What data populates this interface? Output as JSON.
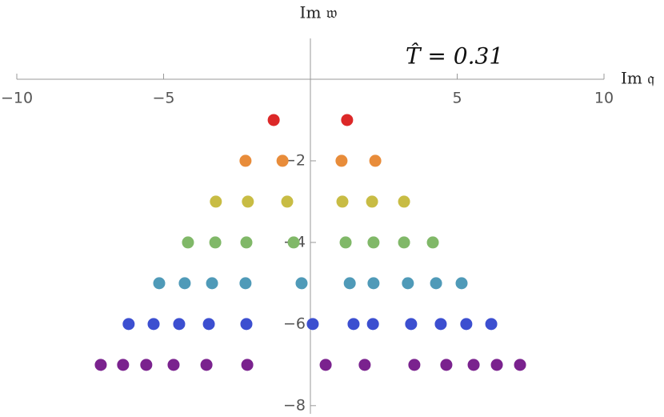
{
  "chart_data": {
    "type": "scatter",
    "x_label": "Im 𝔮",
    "y_label": "Im 𝔴",
    "annotation": "T̂ = 0.31",
    "xlim": [
      -10,
      10
    ],
    "ylim": [
      -8.2,
      1
    ],
    "xticks": [
      {
        "value": -10,
        "label": "−10"
      },
      {
        "value": -5,
        "label": "−5"
      },
      5,
      10
    ],
    "yticks": [
      {
        "value": -2,
        "label": "−2"
      },
      {
        "value": -4,
        "label": "−4"
      },
      {
        "value": -6,
        "label": "−6"
      },
      {
        "value": -8,
        "label": "−8"
      }
    ],
    "series": [
      {
        "color": "#dc2828",
        "x": [
          -1.25,
          1.25
        ],
        "y": [
          -1,
          -1
        ]
      },
      {
        "color": "#e88c3a",
        "x": [
          -2.21,
          -0.95,
          1.06,
          2.21
        ],
        "y": [
          -2,
          -2,
          -2,
          -2
        ]
      },
      {
        "color": "#c8bc44",
        "x": [
          -3.22,
          -2.13,
          -0.79,
          1.09,
          2.1,
          3.19
        ],
        "y": [
          -3,
          -3,
          -3,
          -3,
          -3,
          -3
        ]
      },
      {
        "color": "#80b868",
        "x": [
          -4.17,
          -3.24,
          -2.18,
          -0.57,
          1.2,
          2.15,
          3.19,
          4.17
        ],
        "y": [
          -4,
          -4,
          -4,
          -4,
          -4,
          -4,
          -4,
          -4
        ]
      },
      {
        "color": "#4f9ab8",
        "x": [
          -5.15,
          -4.28,
          -3.35,
          -2.21,
          -0.3,
          1.34,
          2.15,
          3.32,
          4.28,
          5.15
        ],
        "y": [
          -5,
          -5,
          -5,
          -5,
          -5,
          -5,
          -5,
          -5,
          -5,
          -5
        ]
      },
      {
        "color": "#3c4fd0",
        "x": [
          -6.19,
          -5.34,
          -4.47,
          -3.46,
          -2.18,
          0.08,
          1.47,
          2.13,
          3.43,
          4.44,
          5.31,
          6.16
        ],
        "y": [
          -6,
          -6,
          -6,
          -6,
          -6,
          -6,
          -6,
          -6,
          -6,
          -6,
          -6,
          -6
        ]
      },
      {
        "color": "#7a228e",
        "x": [
          -7.14,
          -6.38,
          -5.59,
          -4.66,
          -3.54,
          -2.15,
          0.52,
          1.85,
          3.54,
          4.63,
          5.56,
          6.35,
          7.14
        ],
        "y": [
          -7,
          -7,
          -7,
          -7,
          -7,
          -7,
          -7,
          -7,
          -7,
          -7,
          -7,
          -7,
          -7
        ]
      }
    ]
  }
}
